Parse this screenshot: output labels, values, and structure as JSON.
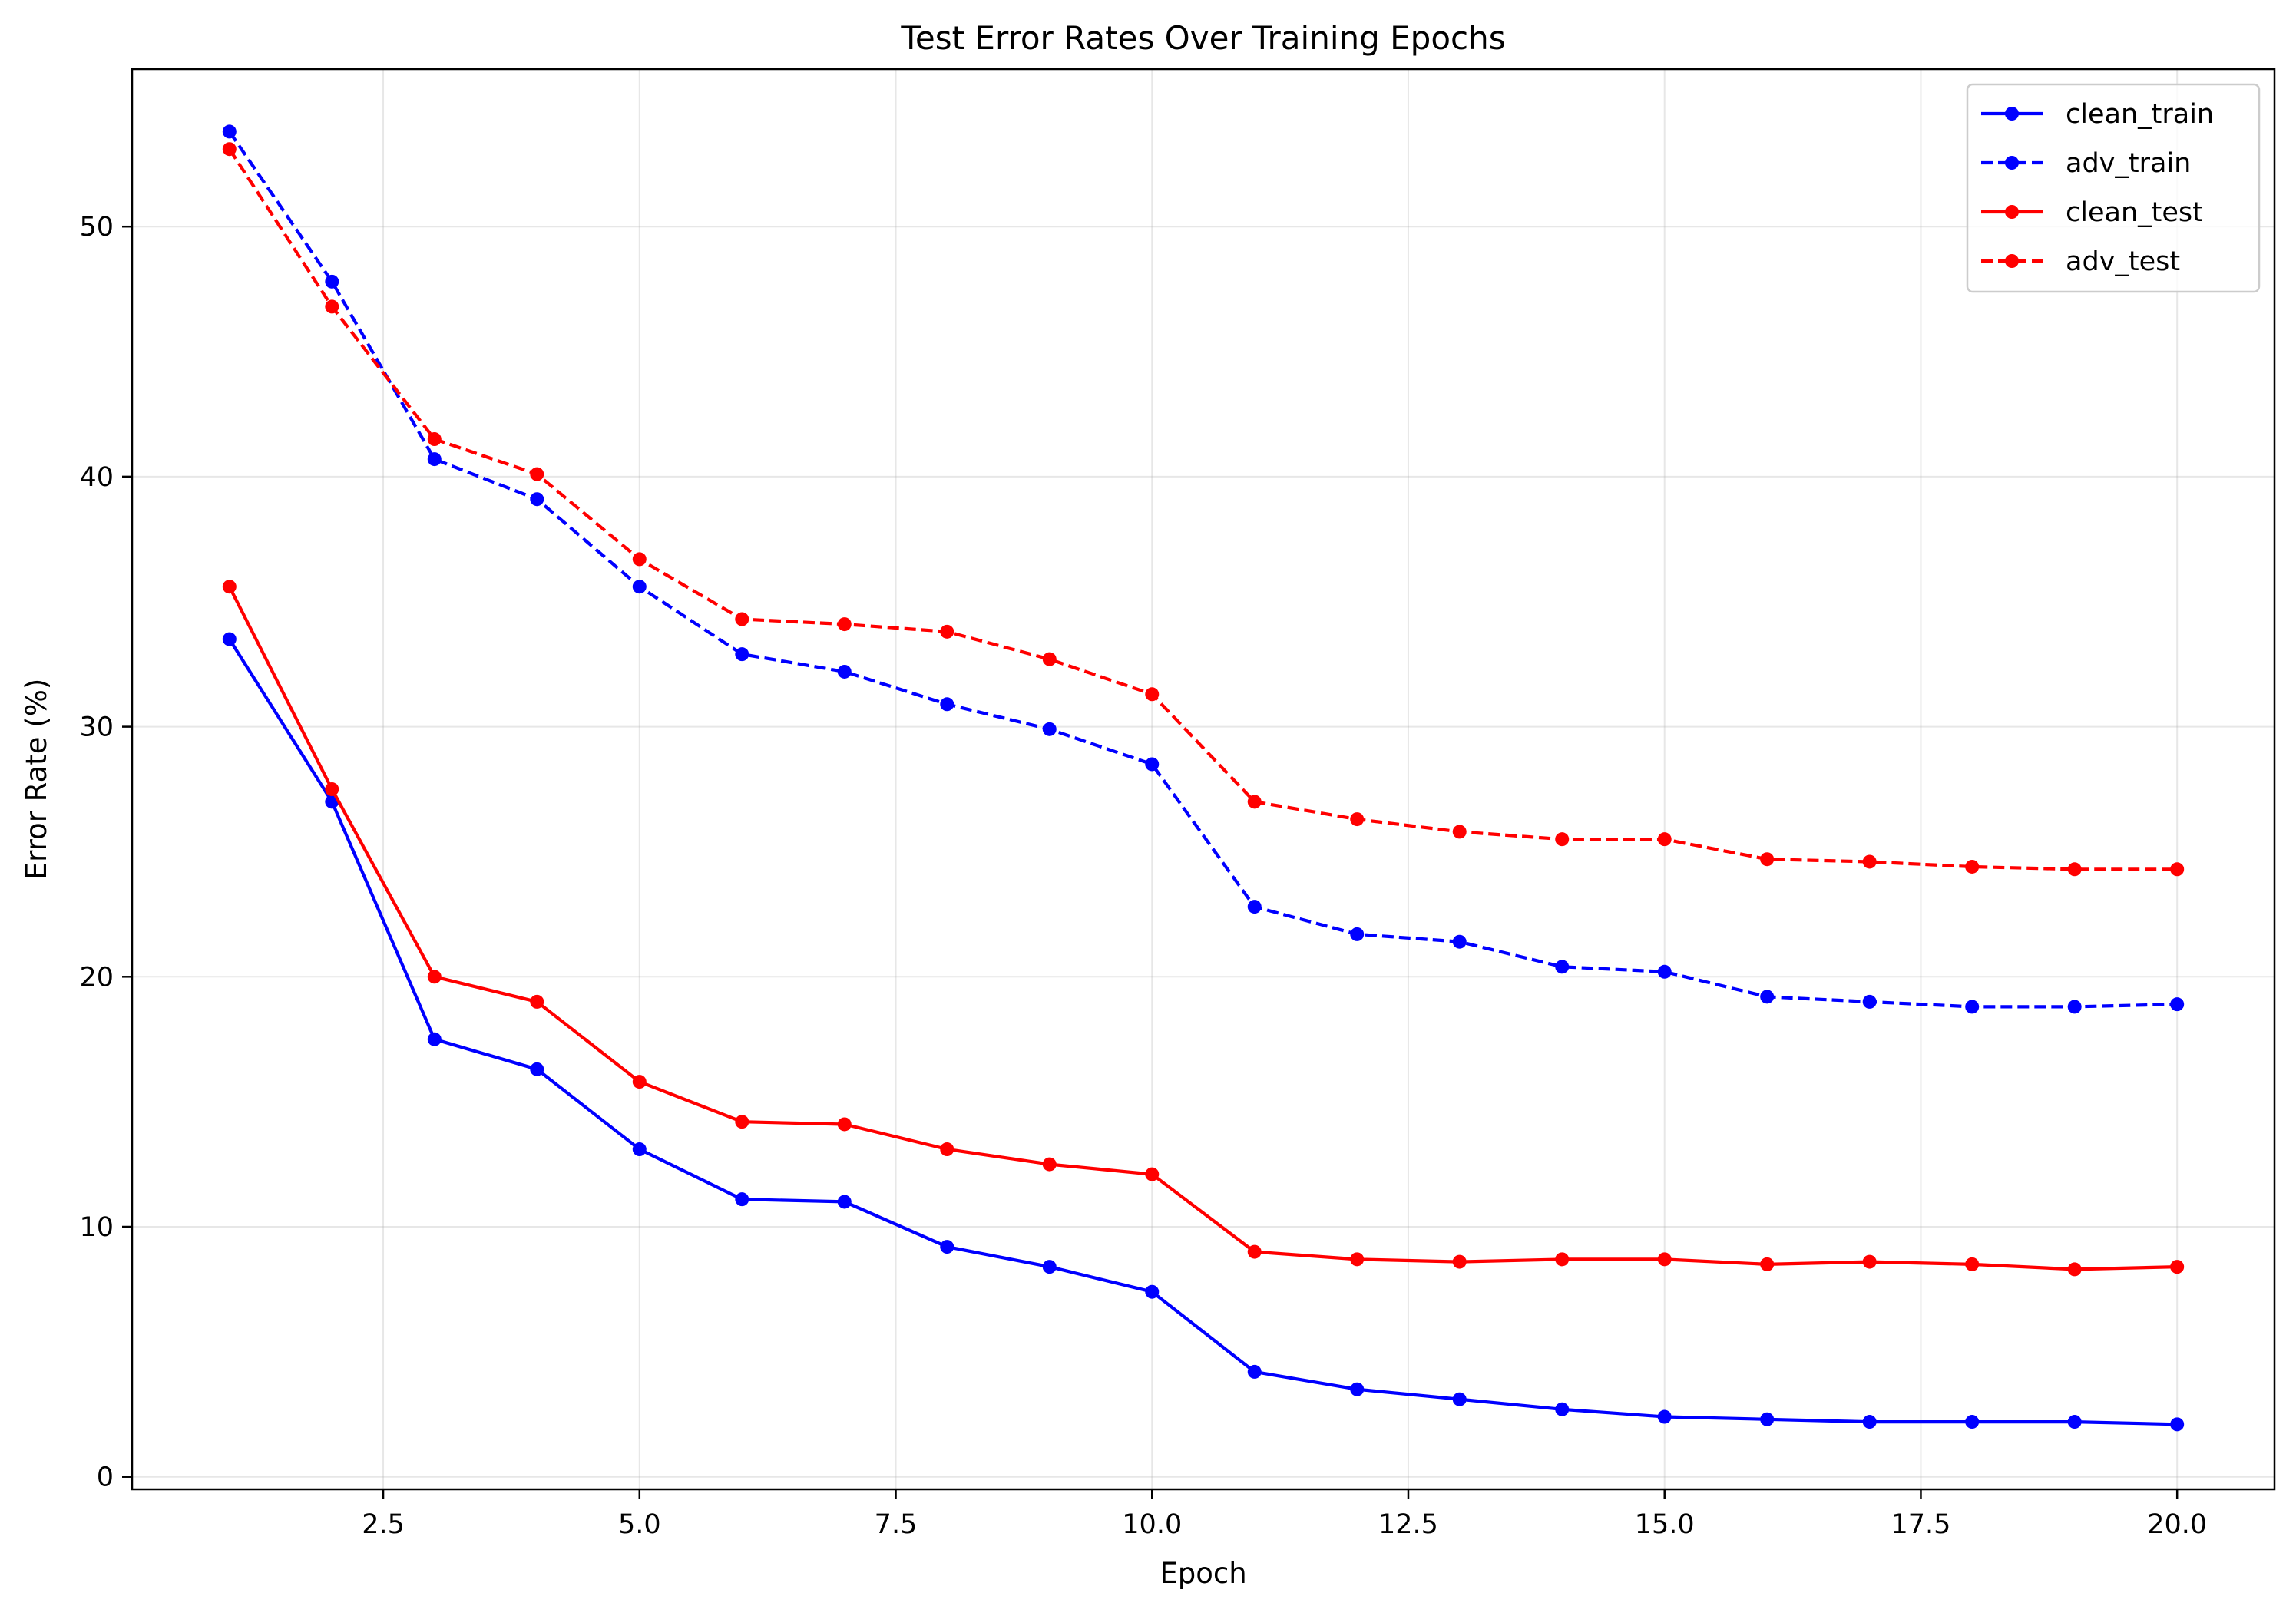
{
  "chart_data": {
    "type": "line",
    "title": "Test Error Rates Over Training Epochs",
    "xlabel": "Epoch",
    "ylabel": "Error Rate (%)",
    "xlim": [
      0.05,
      20.95
    ],
    "ylim": [
      -0.5,
      56.3
    ],
    "xticks": [
      2.5,
      5.0,
      7.5,
      10.0,
      12.5,
      15.0,
      17.5,
      20.0
    ],
    "xtick_labels": [
      "2.5",
      "5.0",
      "7.5",
      "10.0",
      "12.5",
      "15.0",
      "17.5",
      "20.0"
    ],
    "yticks": [
      0,
      10,
      20,
      30,
      40,
      50
    ],
    "ytick_labels": [
      "0",
      "10",
      "20",
      "30",
      "40",
      "50"
    ],
    "grid": true,
    "legend_position": "top-right",
    "x": [
      1,
      2,
      3,
      4,
      5,
      6,
      7,
      8,
      9,
      10,
      11,
      12,
      13,
      14,
      15,
      16,
      17,
      18,
      19,
      20
    ],
    "series": [
      {
        "name": "clean_train",
        "color": "#0000ff",
        "linestyle": "solid",
        "marker": "circle",
        "values": [
          33.5,
          27.0,
          17.5,
          16.3,
          13.1,
          11.1,
          11.0,
          9.2,
          8.4,
          7.4,
          4.2,
          3.5,
          3.1,
          2.7,
          2.4,
          2.3,
          2.2,
          2.2,
          2.2,
          2.1
        ]
      },
      {
        "name": "adv_train",
        "color": "#0000ff",
        "linestyle": "dashed",
        "marker": "circle",
        "values": [
          53.8,
          47.8,
          40.7,
          39.1,
          35.6,
          32.9,
          32.2,
          30.9,
          29.9,
          28.5,
          22.8,
          21.7,
          21.4,
          20.4,
          20.2,
          19.2,
          19.0,
          18.8,
          18.8,
          18.9
        ]
      },
      {
        "name": "clean_test",
        "color": "#ff0000",
        "linestyle": "solid",
        "marker": "circle",
        "values": [
          35.6,
          27.5,
          20.0,
          19.0,
          15.8,
          14.2,
          14.1,
          13.1,
          12.5,
          12.1,
          9.0,
          8.7,
          8.6,
          8.7,
          8.7,
          8.5,
          8.6,
          8.5,
          8.3,
          8.4
        ]
      },
      {
        "name": "adv_test",
        "color": "#ff0000",
        "linestyle": "dashed",
        "marker": "circle",
        "values": [
          53.1,
          46.8,
          41.5,
          40.1,
          36.7,
          34.3,
          34.1,
          33.8,
          32.7,
          31.3,
          27.0,
          26.3,
          25.8,
          25.5,
          25.5,
          24.7,
          24.6,
          24.4,
          24.3,
          24.3
        ]
      }
    ]
  }
}
